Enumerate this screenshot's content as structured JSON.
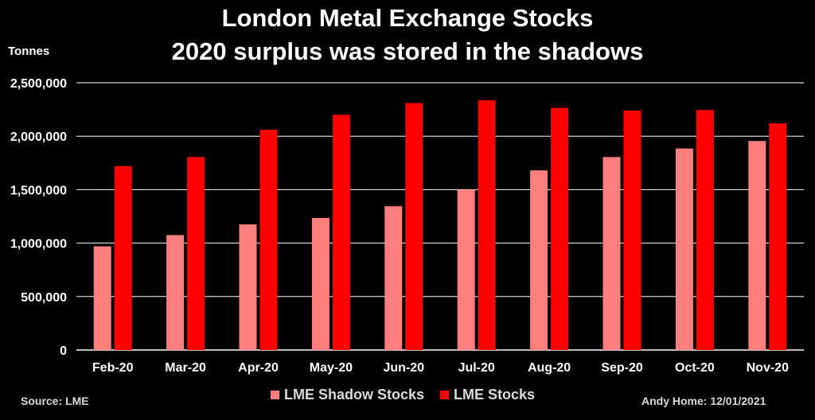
{
  "header": {
    "title_line1": "London Metal Exchange Stocks",
    "title_line2": "2020 surplus was stored in the shadows",
    "unit_label": "Tonnes"
  },
  "footer": {
    "source": "Source: LME",
    "credit": "Andy Home: 12/01/2021"
  },
  "colors": {
    "shadow": "#ff7f7f",
    "lme": "#ff0000",
    "axis": "#ffffff",
    "grid": "#ffffff"
  },
  "chart_data": {
    "type": "bar",
    "title": "London Metal Exchange Stocks 2020 surplus was stored in the shadows",
    "ylabel": "Tonnes",
    "xlabel": "",
    "ylim": [
      0,
      2500000
    ],
    "yticks": [
      0,
      500000,
      1000000,
      1500000,
      2000000,
      2500000
    ],
    "ytick_labels": [
      "0",
      "500,000",
      "1,000,000",
      "1,500,000",
      "2,000,000",
      "2,500,000"
    ],
    "grid": true,
    "legend_position": "bottom",
    "categories": [
      "Feb-20",
      "Mar-20",
      "Apr-20",
      "May-20",
      "Jun-20",
      "Jul-20",
      "Aug-20",
      "Sep-20",
      "Oct-20",
      "Nov-20"
    ],
    "series": [
      {
        "name": "LME Shadow Stocks",
        "color": "#ff7f7f",
        "values": [
          970000,
          1075000,
          1175000,
          1235000,
          1345000,
          1500000,
          1680000,
          1805000,
          1885000,
          1955000
        ]
      },
      {
        "name": "LME Stocks",
        "color": "#ff0000",
        "values": [
          1720000,
          1805000,
          2060000,
          2200000,
          2310000,
          2335000,
          2265000,
          2240000,
          2245000,
          2120000
        ]
      }
    ]
  }
}
